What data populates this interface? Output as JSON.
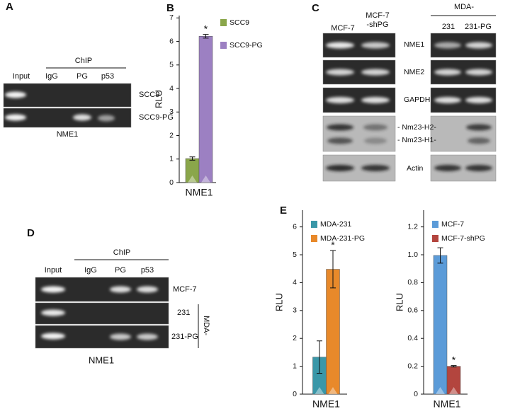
{
  "panel_A": {
    "label": "A",
    "chip": "ChIP",
    "lanes": [
      "Input",
      "IgG",
      "PG",
      "p53"
    ],
    "rows": [
      "SCC9",
      "SCC9-PG"
    ],
    "gene": "NME1"
  },
  "panel_C": {
    "label": "C",
    "lane_mcf7": "MCF-7",
    "lane_shpg": [
      "MCF-7",
      "-shPG"
    ],
    "group": "MDA-",
    "lanes_mda": [
      "231",
      "231-PG"
    ],
    "rows": [
      "NME1",
      "NME2",
      "GAPDH",
      "- Nm23-H2-",
      "- Nm23-H1-",
      "Actin"
    ]
  },
  "panel_D": {
    "label": "D",
    "chip": "ChIP",
    "lanes": [
      "Input",
      "IgG",
      "PG",
      "p53"
    ],
    "rows": [
      "MCF-7",
      "231",
      "231-PG"
    ],
    "group": "MDA-",
    "gene": "NME1"
  },
  "panel_E": "E",
  "chart_data": [
    {
      "type": "bar",
      "panel": "B",
      "categories": [
        "NME1"
      ],
      "ylabel": "RLU",
      "ylim": [
        0,
        7.1
      ],
      "yticks": [
        0,
        1,
        2,
        3,
        4,
        5,
        6,
        7
      ],
      "legend": "right",
      "series": [
        {
          "name": "SCC9",
          "color": "#8aa64a",
          "values": [
            1.02
          ],
          "errors": [
            0.07
          ]
        },
        {
          "name": "SCC9-PG",
          "color": "#9c80c2",
          "values": [
            6.22
          ],
          "errors": [
            0.08
          ],
          "annotation": "*"
        }
      ]
    },
    {
      "type": "bar",
      "categories": [
        "NME1"
      ],
      "ylabel": "RLU",
      "ylim": [
        0,
        6.6
      ],
      "yticks": [
        0,
        1,
        2,
        3,
        4,
        5,
        6
      ],
      "legend": "upper left",
      "series": [
        {
          "name": "MDA-231",
          "color": "#3a97a8",
          "values": [
            1.33
          ],
          "errors": [
            0.58
          ]
        },
        {
          "name": "MDA-231-PG",
          "color": "#e8892a",
          "values": [
            4.48
          ],
          "errors": [
            0.67
          ],
          "annotation": "*"
        }
      ]
    },
    {
      "type": "bar",
      "categories": [
        "NME1"
      ],
      "ylabel": "RLU",
      "ylim": [
        0,
        1.32
      ],
      "yticks": [
        0,
        0.2,
        0.4,
        0.6,
        0.8,
        {
          "value": 1,
          "label": "1.0"
        },
        1.2
      ],
      "legend": "upper left",
      "series": [
        {
          "name": "MCF-7",
          "color": "#5b9bd8",
          "values": [
            0.995
          ],
          "errors": [
            0.055
          ]
        },
        {
          "name": "MCF-7-shPG",
          "color": "#b3453e",
          "values": [
            0.2
          ],
          "errors": [
            0.005
          ],
          "annotation": "*"
        }
      ]
    }
  ]
}
